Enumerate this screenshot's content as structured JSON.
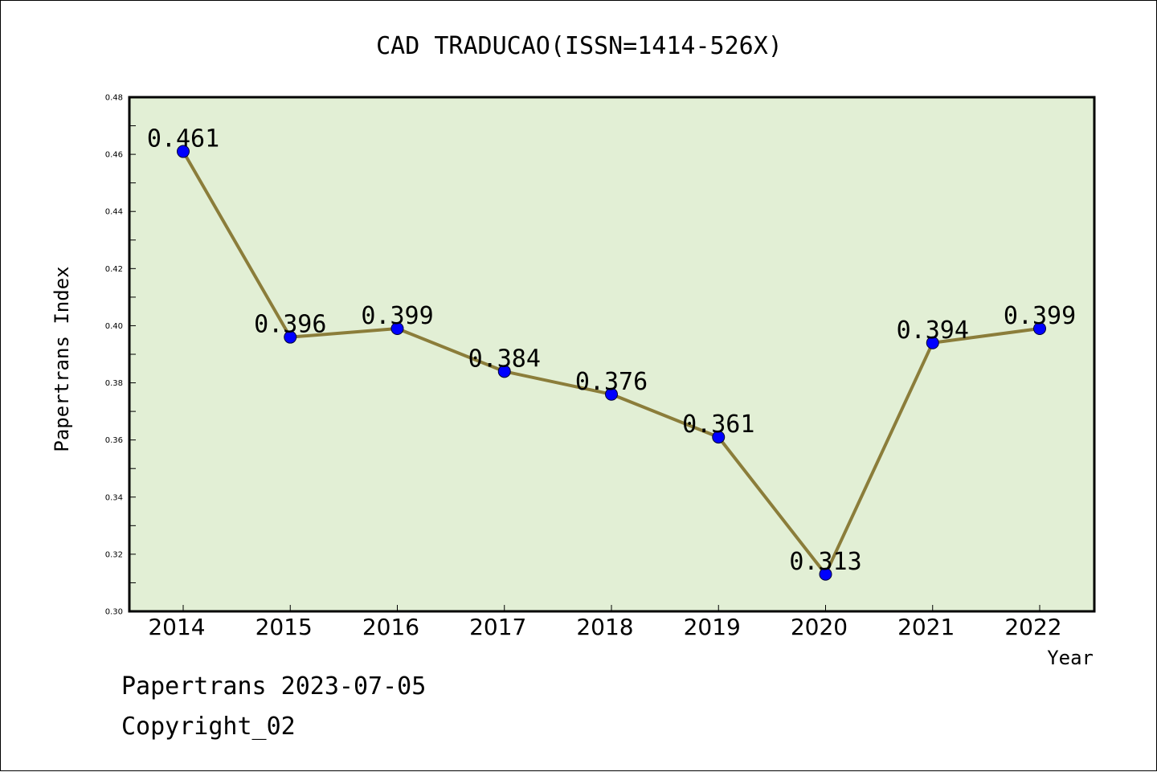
{
  "chart_data": {
    "type": "line",
    "title": "CAD TRADUCAO(ISSN=1414-526X)",
    "xlabel": "Year",
    "ylabel": "Papertrans Index",
    "categories": [
      "2014",
      "2015",
      "2016",
      "2017",
      "2018",
      "2019",
      "2020",
      "2021",
      "2022"
    ],
    "values": [
      0.461,
      0.396,
      0.399,
      0.384,
      0.376,
      0.361,
      0.313,
      0.394,
      0.399
    ],
    "data_labels": [
      "0.461",
      "0.396",
      "0.399",
      "0.384",
      "0.376",
      "0.361",
      "0.313",
      "0.394",
      "0.399"
    ],
    "ylim": [
      0.3,
      0.48
    ],
    "yticks": [
      "0.30",
      "0.32",
      "0.34",
      "0.36",
      "0.38",
      "0.40",
      "0.42",
      "0.44",
      "0.46",
      "0.48"
    ],
    "grid": false,
    "colors": {
      "line": "#8b7d3a",
      "marker": "#0000ff",
      "plot_background": "#e2efd5"
    }
  },
  "footer": {
    "date_line": "Papertrans 2023-07-05",
    "copyright": "Copyright_02"
  }
}
